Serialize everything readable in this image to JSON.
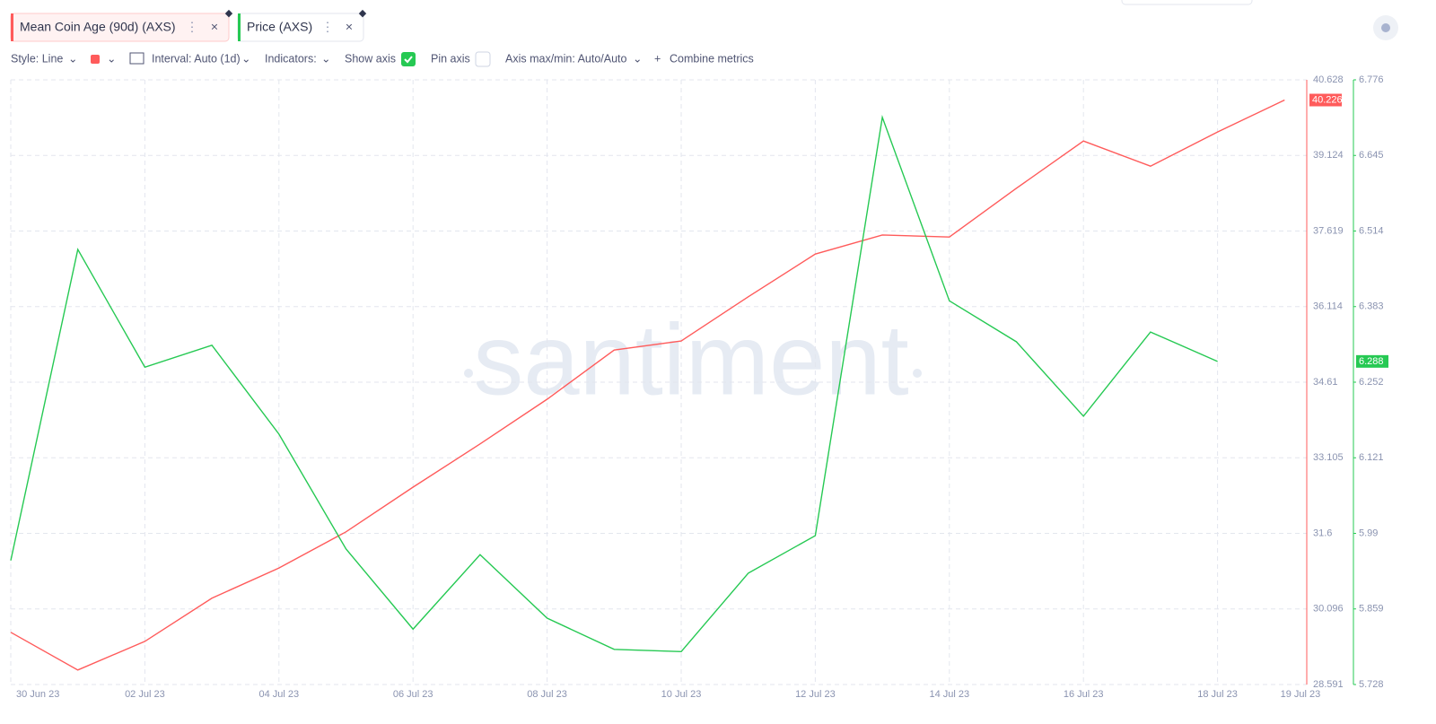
{
  "ui": {
    "toolbar": {
      "style": "Style: Line",
      "interval": "Interval: Auto (1d)",
      "indicators": "Indicators:",
      "show_axis": "Show axis",
      "pin_axis": "Pin axis",
      "axis_minmax": "Axis max/min: Auto/Auto",
      "combine": "Combine metrics"
    },
    "watermark": "santiment"
  },
  "chart_data": {
    "type": "line",
    "categories": [
      "30 Jun 23",
      null,
      "02 Jul 23",
      null,
      "04 Jul 23",
      null,
      "06 Jul 23",
      null,
      "08 Jul 23",
      null,
      "10 Jul 23",
      null,
      "12 Jul 23",
      null,
      "14 Jul 23",
      null,
      "16 Jul 23",
      null,
      "18 Jul 23",
      "19 Jul 23"
    ],
    "series": [
      {
        "name": "Mean Coin Age (90d) (AXS)",
        "color": "#ff5b5b",
        "axis": "y",
        "values": [
          29.63,
          28.88,
          29.45,
          30.31,
          30.91,
          31.63,
          32.52,
          33.38,
          34.27,
          35.25,
          35.43,
          36.31,
          37.16,
          37.54,
          37.5,
          38.47,
          39.41,
          38.91,
          39.59,
          40.226
        ],
        "value_labels": [
          null,
          null,
          null,
          null,
          null,
          null,
          null,
          null,
          null,
          null,
          null,
          null,
          null,
          null,
          null,
          null,
          null,
          null,
          null,
          "40.226"
        ]
      },
      {
        "name": "Price (AXS)",
        "color": "#26c953",
        "axis": "y2",
        "values": [
          5.943,
          6.482,
          6.278,
          6.316,
          6.162,
          5.963,
          5.824,
          5.953,
          5.843,
          5.789,
          5.785,
          5.921,
          5.986,
          6.711,
          6.393,
          6.322,
          6.193,
          6.339,
          6.288,
          null
        ],
        "value_labels": [
          null,
          null,
          null,
          null,
          null,
          null,
          null,
          null,
          null,
          null,
          null,
          null,
          null,
          null,
          null,
          null,
          null,
          null,
          "6.288",
          null
        ]
      }
    ],
    "ylim": [
      28.591,
      40.628
    ],
    "yticks": [
      40.628,
      39.124,
      37.619,
      36.114,
      34.61,
      33.105,
      31.6,
      30.096,
      28.591
    ],
    "y2lim": [
      5.728,
      6.776
    ],
    "y2ticks": [
      6.776,
      6.645,
      6.514,
      6.383,
      6.252,
      6.121,
      5.99,
      5.859,
      5.728
    ],
    "grid": true
  }
}
